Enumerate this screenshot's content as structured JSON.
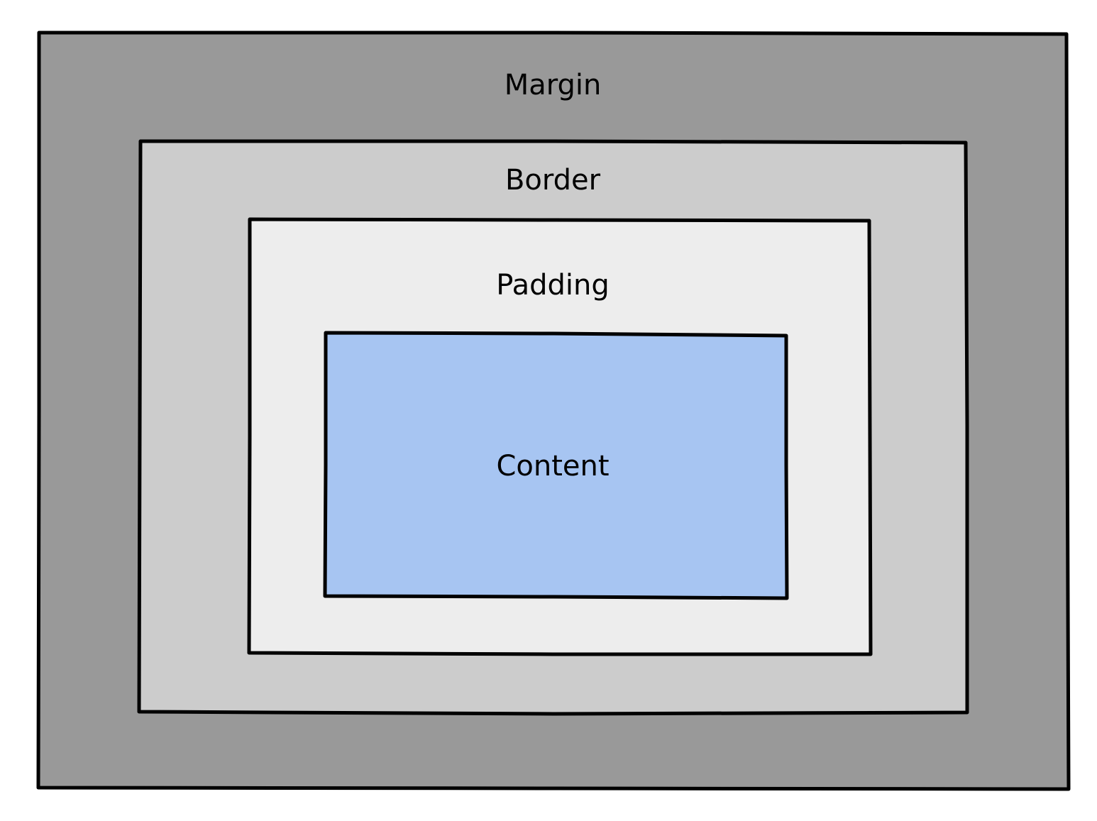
{
  "layers": {
    "margin": {
      "label": "Margin",
      "fill": "#999999"
    },
    "border": {
      "label": "Border",
      "fill": "#cccccc"
    },
    "padding": {
      "label": "Padding",
      "fill": "#ededed"
    },
    "content": {
      "label": "Content",
      "fill": "#a7c5f2"
    }
  },
  "stroke_color": "#000000"
}
